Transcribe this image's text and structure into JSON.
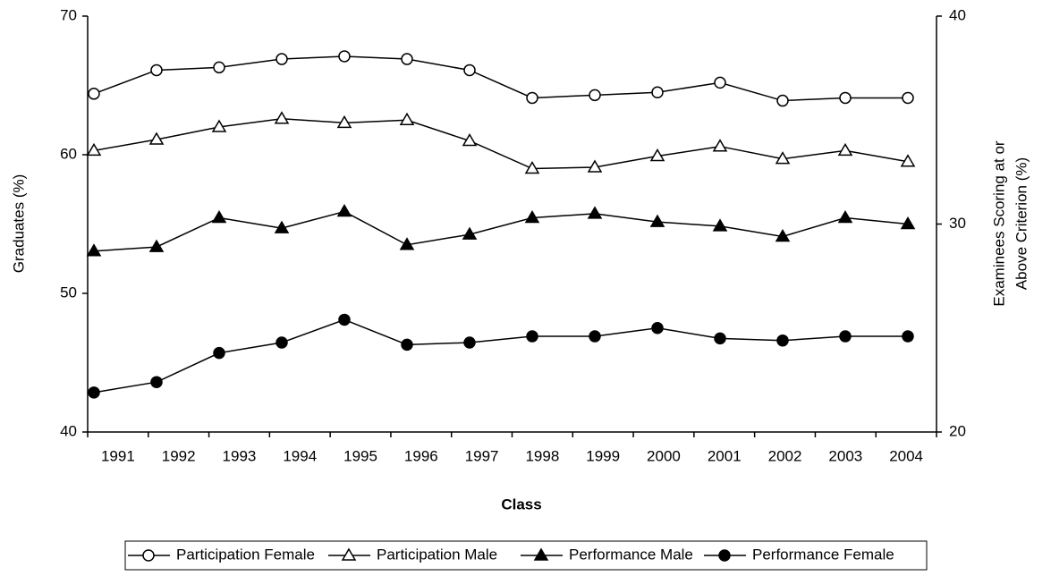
{
  "chart_data": {
    "type": "line",
    "xlabel": "Class",
    "ylabel": "Graduates (%)",
    "y2label": [
      "Examinees Scoring at or",
      "Above Criterion (%)"
    ],
    "categories": [
      "1991",
      "1992",
      "1993",
      "1994",
      "1995",
      "1996",
      "1997",
      "1998",
      "1999",
      "2000",
      "2001",
      "2002",
      "2003",
      "2004"
    ],
    "ylim": [
      40,
      70
    ],
    "yticks": [
      40,
      50,
      60,
      70
    ],
    "y2lim": [
      20,
      40
    ],
    "y2ticks": [
      20,
      30,
      40
    ],
    "legend": "bottom",
    "series": [
      {
        "name": "Participation Female",
        "color": "#000000",
        "marker": "circle",
        "filled": false,
        "values": [
          64.4,
          66.1,
          66.3,
          66.9,
          67.1,
          66.9,
          66.1,
          64.1,
          64.3,
          64.5,
          65.2,
          63.9,
          64.1,
          64.1
        ]
      },
      {
        "name": "Participation Male",
        "color": "#000000",
        "marker": "triangle",
        "filled": false,
        "values": [
          60.3,
          61.1,
          62.0,
          62.6,
          62.3,
          62.5,
          61.0,
          59.0,
          59.1,
          59.9,
          60.6,
          59.7,
          60.3,
          59.5
        ]
      },
      {
        "name": "Performance Male",
        "color": "#000000",
        "marker": "triangle",
        "filled": true,
        "axis": "y2",
        "values": [
          28.7,
          28.9,
          30.3,
          29.8,
          30.6,
          29.0,
          29.5,
          30.3,
          30.5,
          30.1,
          29.9,
          29.4,
          30.3,
          30.0
        ]
      },
      {
        "name": "Performance Female",
        "color": "#000000",
        "marker": "circle",
        "filled": true,
        "axis": "y2",
        "values": [
          21.9,
          22.4,
          23.8,
          24.3,
          25.4,
          24.2,
          24.3,
          24.6,
          24.6,
          25.0,
          24.5,
          24.4,
          24.6,
          24.6
        ]
      }
    ]
  }
}
